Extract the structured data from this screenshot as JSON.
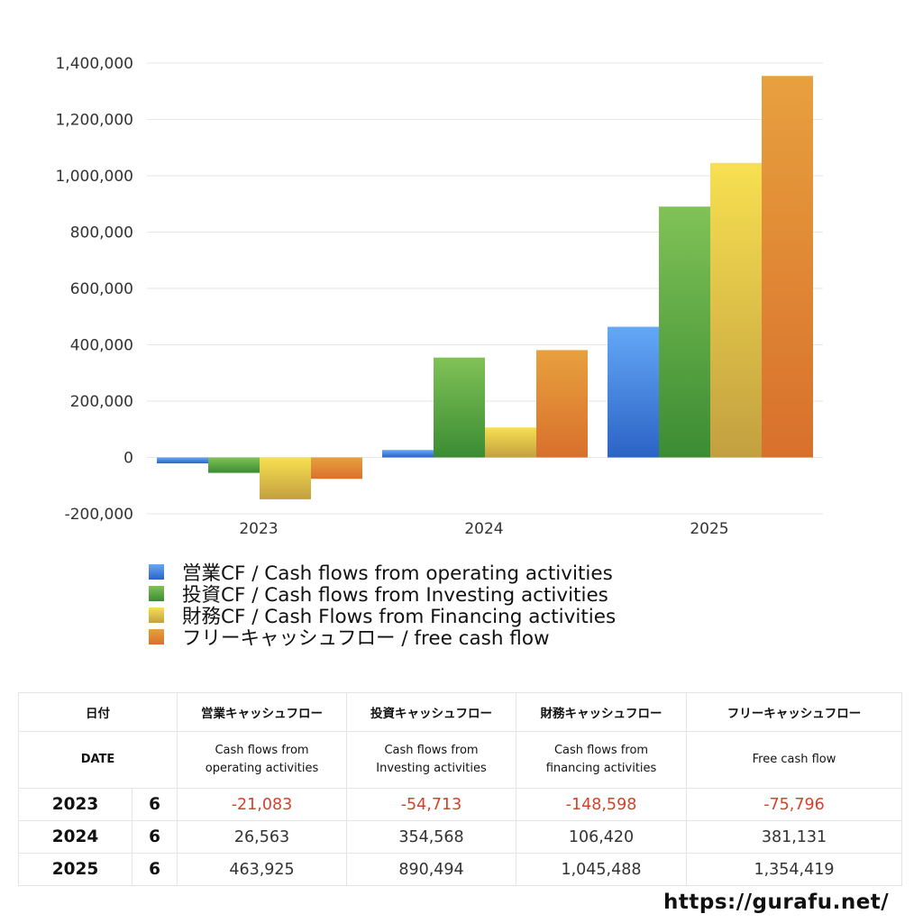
{
  "chart_data": {
    "type": "bar",
    "categories": [
      "2023",
      "2024",
      "2025"
    ],
    "series": [
      {
        "name": "営業CF / Cash flows from operating activities",
        "values": [
          -21083,
          26563,
          463925
        ],
        "color_top": "#64a8f6",
        "color_bottom": "#2c63c6"
      },
      {
        "name": "投資CF / Cash flows from Investing activities",
        "values": [
          -54713,
          354568,
          890494
        ],
        "color_top": "#80c256",
        "color_bottom": "#3b8c33"
      },
      {
        "name": "財務CF / Cash Flows from Financing activities",
        "values": [
          -148598,
          106420,
          1045488
        ],
        "color_top": "#f7e050",
        "color_bottom": "#c2a040"
      },
      {
        "name": "フリーキャッシュフロー / free cash flow",
        "values": [
          -75796,
          381131,
          1354419
        ],
        "color_top": "#e8a03e",
        "color_bottom": "#d8702c"
      }
    ],
    "ylim": [
      -200000,
      1400000
    ],
    "yticks": [
      "1,400,000",
      "1,200,000",
      "1,000,000",
      "800,000",
      "600,000",
      "400,000",
      "200,000",
      "0",
      "-200,000"
    ],
    "ytick_values": [
      1400000,
      1200000,
      1000000,
      800000,
      600000,
      400000,
      200000,
      0,
      -200000
    ],
    "grid": true,
    "legend_placement": "bottom"
  },
  "table": {
    "header_jp": {
      "date": "日付",
      "operating": "営業キャッシュフロー",
      "investing": "投資キャッシュフロー",
      "financing": "財務キャッシュフロー",
      "free": "フリーキャッシュフロー"
    },
    "header_en": {
      "date": "DATE",
      "operating_1": "Cash flows from",
      "operating_2": "operating activities",
      "investing_1": "Cash flows from",
      "investing_2": "Investing activities",
      "financing_1": "Cash flows from",
      "financing_2": "financing activities",
      "free": "Free cash flow"
    },
    "rows": [
      {
        "year": "2023",
        "month": "6",
        "operating": "-21,083",
        "investing": "-54,713",
        "financing": "-148,598",
        "free": "-75,796"
      },
      {
        "year": "2024",
        "month": "6",
        "operating": "26,563",
        "investing": "354,568",
        "financing": "106,420",
        "free": "381,131"
      },
      {
        "year": "2025",
        "month": "6",
        "operating": "463,925",
        "investing": "890,494",
        "financing": "1,045,488",
        "free": "1,354,419"
      }
    ],
    "negative_color": "#d0432a"
  },
  "footer": {
    "url": "https://gurafu.net/"
  }
}
